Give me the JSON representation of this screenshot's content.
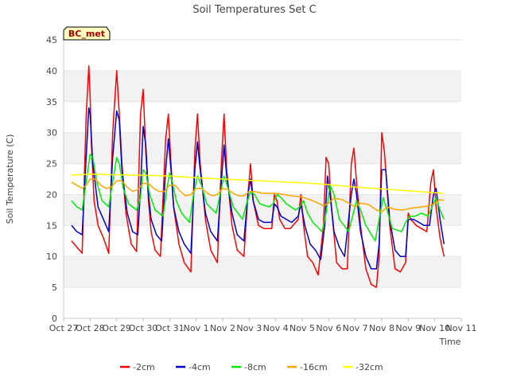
{
  "chart_data": {
    "type": "line",
    "title": "Soil Temperatures Set C",
    "xlabel": "Time",
    "ylabel": "Soil Temperature (C)",
    "ylim": [
      0,
      45
    ],
    "yticks": [
      0,
      5,
      10,
      15,
      20,
      25,
      30,
      35,
      40,
      45
    ],
    "xlim": [
      0,
      15
    ],
    "xtick_labels": [
      "Oct 27",
      "Oct 28",
      "Oct 29",
      "Oct 30",
      "Oct 31",
      "Nov 1",
      "Nov 2",
      "Nov 3",
      "Nov 4",
      "Nov 5",
      "Nov 6",
      "Nov 7",
      "Nov 8",
      "Nov 9",
      "Nov 10",
      "Nov 11"
    ],
    "grid": "horizontal bands",
    "legend_position": "bottom",
    "station_label": "BC_met",
    "series": [
      {
        "name": "-2cm",
        "color": "#ff0000",
        "x": [
          0.3,
          0.5,
          0.7,
          0.85,
          0.95,
          1.0,
          1.05,
          1.15,
          1.3,
          1.5,
          1.7,
          1.85,
          2.0,
          2.1,
          2.2,
          2.35,
          2.55,
          2.75,
          2.9,
          3.0,
          3.1,
          3.2,
          3.3,
          3.45,
          3.65,
          3.85,
          3.95,
          4.05,
          4.15,
          4.35,
          4.55,
          4.8,
          4.95,
          5.05,
          5.15,
          5.35,
          5.55,
          5.8,
          5.95,
          6.05,
          6.15,
          6.35,
          6.55,
          6.8,
          6.95,
          7.05,
          7.15,
          7.35,
          7.55,
          7.85,
          7.95,
          8.05,
          8.15,
          8.35,
          8.55,
          8.85,
          8.95,
          9.05,
          9.2,
          9.4,
          9.6,
          9.8,
          9.9,
          10.0,
          10.1,
          10.3,
          10.5,
          10.7,
          10.85,
          10.95,
          11.05,
          11.2,
          11.4,
          11.6,
          11.8,
          11.9,
          12.0,
          12.1,
          12.3,
          12.5,
          12.7,
          12.9,
          13.0,
          13.1,
          13.3,
          13.5,
          13.7,
          13.85,
          13.95,
          14.05,
          14.2,
          14.35
        ],
        "y": [
          12.5,
          11.5,
          10.5,
          32.5,
          40.8,
          36,
          28,
          19,
          15,
          13,
          10.5,
          30,
          40,
          33,
          25,
          17,
          12,
          10.8,
          33,
          37,
          27,
          19,
          14,
          11,
          10,
          29,
          33,
          25,
          18,
          12,
          9,
          7.5,
          27,
          33,
          25,
          16,
          11,
          9,
          25,
          33,
          24,
          15,
          11,
          10,
          20,
          25,
          19,
          15,
          14.5,
          14.5,
          20,
          19,
          16,
          14.5,
          14.5,
          16,
          20,
          15,
          10,
          9,
          7,
          15,
          26,
          25,
          18,
          9,
          8,
          8,
          25,
          27.5,
          22,
          15,
          8,
          5.5,
          5,
          10,
          30,
          27,
          15,
          8,
          7.5,
          9,
          17,
          16,
          15,
          14.5,
          14,
          22,
          24,
          18,
          13,
          10
        ]
      },
      {
        "name": "-4cm",
        "color": "#0000cc",
        "x": [
          0.3,
          0.5,
          0.7,
          0.85,
          0.95,
          1.0,
          1.1,
          1.3,
          1.5,
          1.7,
          1.85,
          2.0,
          2.1,
          2.2,
          2.4,
          2.6,
          2.8,
          2.9,
          3.0,
          3.1,
          3.2,
          3.3,
          3.5,
          3.7,
          3.85,
          3.95,
          4.05,
          4.15,
          4.35,
          4.55,
          4.8,
          4.95,
          5.05,
          5.15,
          5.35,
          5.55,
          5.8,
          5.95,
          6.05,
          6.15,
          6.35,
          6.55,
          6.8,
          6.95,
          7.05,
          7.15,
          7.35,
          7.55,
          7.85,
          7.95,
          8.05,
          8.2,
          8.4,
          8.6,
          8.85,
          8.95,
          9.1,
          9.3,
          9.5,
          9.7,
          9.85,
          9.95,
          10.05,
          10.2,
          10.4,
          10.6,
          10.85,
          10.95,
          11.05,
          11.2,
          11.4,
          11.6,
          11.8,
          11.9,
          12.0,
          12.15,
          12.3,
          12.5,
          12.7,
          12.9,
          13.0,
          13.2,
          13.4,
          13.6,
          13.8,
          13.95,
          14.05,
          14.2,
          14.35
        ],
        "y": [
          15,
          14,
          13.5,
          26,
          34,
          33,
          25,
          18,
          16,
          14,
          26,
          33.5,
          32,
          24,
          17,
          14,
          13.5,
          21,
          31,
          28,
          20,
          16,
          13.5,
          12.5,
          24,
          29,
          24,
          18,
          14,
          12,
          10.5,
          24,
          28.5,
          24,
          17,
          14,
          12.5,
          22,
          28,
          23,
          17,
          13.5,
          12.5,
          20,
          22.5,
          19,
          16,
          15.5,
          15.5,
          18.5,
          18,
          16.5,
          16,
          15.5,
          16.5,
          18.5,
          15,
          12,
          11,
          9.5,
          15,
          23,
          20,
          14,
          11.5,
          10,
          20,
          22.5,
          20,
          14,
          10,
          8,
          8,
          12,
          24,
          24,
          16,
          11,
          10,
          10,
          16,
          16,
          15.5,
          15,
          15,
          20,
          21,
          16,
          12
        ]
      },
      {
        "name": "-8cm",
        "color": "#00ee00",
        "x": [
          0.3,
          0.5,
          0.7,
          0.85,
          1.0,
          1.1,
          1.25,
          1.45,
          1.7,
          1.85,
          2.0,
          2.1,
          2.25,
          2.45,
          2.75,
          2.9,
          3.0,
          3.1,
          3.25,
          3.45,
          3.75,
          3.9,
          4.0,
          4.1,
          4.25,
          4.45,
          4.75,
          4.9,
          5.05,
          5.2,
          5.4,
          5.75,
          5.9,
          6.05,
          6.2,
          6.4,
          6.75,
          6.9,
          7.05,
          7.2,
          7.4,
          7.75,
          7.9,
          8.05,
          8.2,
          8.4,
          8.75,
          8.9,
          9.05,
          9.2,
          9.4,
          9.75,
          9.9,
          10.05,
          10.2,
          10.4,
          10.75,
          10.9,
          11.05,
          11.2,
          11.4,
          11.75,
          11.9,
          12.05,
          12.2,
          12.4,
          12.75,
          12.9,
          13.05,
          13.25,
          13.5,
          13.75,
          13.9,
          14.05,
          14.2,
          14.35
        ],
        "y": [
          19,
          18,
          17.5,
          22,
          26.5,
          26,
          22,
          19,
          18,
          22,
          26,
          25,
          21,
          18.5,
          17.5,
          19.5,
          24,
          23.5,
          20,
          17.5,
          16.5,
          21,
          23.5,
          22,
          19,
          17,
          15.5,
          20,
          23,
          21.5,
          18.5,
          17,
          20,
          23,
          21,
          18,
          16,
          18.5,
          20.5,
          20,
          18.5,
          18,
          18.5,
          20,
          19.5,
          18.5,
          17.5,
          18,
          19,
          17,
          15.5,
          14,
          17,
          21.5,
          20,
          16,
          14,
          16.5,
          19,
          17.5,
          15,
          12.5,
          16,
          19.5,
          17.5,
          14.5,
          14,
          15.5,
          16.5,
          16.5,
          17,
          16.5,
          18,
          19.5,
          17.5,
          16
        ]
      },
      {
        "name": "-16cm",
        "color": "#ffa500",
        "x": [
          0.3,
          0.5,
          0.7,
          0.85,
          1.0,
          1.2,
          1.4,
          1.6,
          1.8,
          2.0,
          2.2,
          2.4,
          2.6,
          2.8,
          3.0,
          3.2,
          3.4,
          3.6,
          3.8,
          4.0,
          4.2,
          4.4,
          4.6,
          4.8,
          5.0,
          5.2,
          5.4,
          5.6,
          5.8,
          6.0,
          6.2,
          6.4,
          6.6,
          6.8,
          7.0,
          7.2,
          7.5,
          7.8,
          8.0,
          8.3,
          8.6,
          9.0,
          9.4,
          9.8,
          10.0,
          10.2,
          10.5,
          10.8,
          11.0,
          11.2,
          11.5,
          11.8,
          12.0,
          12.2,
          12.5,
          12.8,
          13.1,
          13.5,
          13.8,
          14.0,
          14.2,
          14.35
        ],
        "y": [
          22,
          21.5,
          21,
          21.5,
          22.5,
          22.5,
          21.5,
          21,
          21.2,
          22.2,
          22.2,
          21.2,
          20.5,
          20.8,
          21.8,
          21.8,
          21,
          20.5,
          20.5,
          21.5,
          21.5,
          20.5,
          19.8,
          20,
          21,
          21,
          20.3,
          19.8,
          20,
          21,
          20.8,
          20.2,
          19.8,
          19.8,
          20.5,
          20.5,
          20.2,
          20.2,
          20.2,
          20,
          19.8,
          19.6,
          19,
          18.2,
          18.6,
          19.4,
          19.2,
          18.5,
          18,
          18.6,
          18.4,
          17.5,
          17.2,
          18,
          17.6,
          17.5,
          17.8,
          18,
          18.2,
          18.6,
          19.2,
          19
        ]
      },
      {
        "name": "-32cm",
        "color": "#ffff00",
        "x": [
          0.3,
          1.0,
          2.0,
          3.0,
          4.0,
          5.0,
          6.0,
          7.0,
          8.0,
          9.0,
          10.0,
          11.0,
          12.0,
          13.0,
          14.0,
          14.35
        ],
        "y": [
          23.1,
          23.3,
          23.2,
          23.1,
          23,
          22.7,
          22.5,
          22.3,
          22.1,
          21.9,
          21.6,
          21.2,
          20.9,
          20.6,
          20.3,
          20.2
        ]
      }
    ]
  }
}
